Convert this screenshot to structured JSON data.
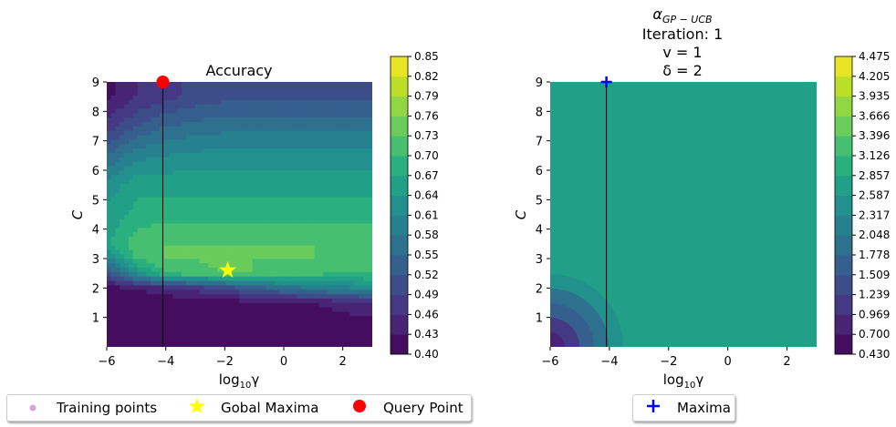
{
  "chart_data": [
    {
      "type": "heatmap",
      "title": "Accuracy",
      "xlabel": "log$_{10}$γ",
      "ylabel": "C",
      "xlim": [
        -6,
        3
      ],
      "ylim": [
        0,
        9
      ],
      "xticks": [
        "−6",
        "−4",
        "−2",
        "0",
        "2"
      ],
      "yticks": [
        "1",
        "2",
        "3",
        "4",
        "5",
        "6",
        "7",
        "8",
        "9"
      ],
      "colorbar": {
        "min": 0.4,
        "max": 0.85,
        "ticks": [
          "0.85",
          "0.82",
          "0.79",
          "0.76",
          "0.73",
          "0.70",
          "0.67",
          "0.64",
          "0.61",
          "0.58",
          "0.55",
          "0.52",
          "0.49",
          "0.46",
          "0.43",
          "0.40"
        ]
      },
      "description_values": {
        "rows_C": [
          0.5,
          1.5,
          2.0,
          2.5,
          3.0,
          3.5,
          4.5,
          5.5,
          6.5,
          7.5,
          8.5
        ],
        "values": [
          [
            0.41,
            0.41,
            0.41,
            0.41,
            0.41,
            0.41,
            0.41,
            0.41,
            0.41,
            0.41
          ],
          [
            0.41,
            0.41,
            0.41,
            0.41,
            0.41,
            0.42,
            0.42,
            0.43,
            0.44,
            0.45
          ],
          [
            0.42,
            0.43,
            0.45,
            0.47,
            0.5,
            0.53,
            0.56,
            0.58,
            0.6,
            0.62
          ],
          [
            0.5,
            0.62,
            0.7,
            0.72,
            0.73,
            0.73,
            0.72,
            0.71,
            0.7,
            0.7
          ],
          [
            0.6,
            0.7,
            0.73,
            0.73,
            0.74,
            0.73,
            0.73,
            0.73,
            0.73,
            0.73
          ],
          [
            0.66,
            0.72,
            0.73,
            0.73,
            0.73,
            0.73,
            0.73,
            0.73,
            0.72,
            0.72
          ],
          [
            0.65,
            0.68,
            0.69,
            0.69,
            0.69,
            0.69,
            0.69,
            0.69,
            0.69,
            0.69
          ],
          [
            0.62,
            0.66,
            0.66,
            0.66,
            0.66,
            0.66,
            0.66,
            0.66,
            0.66,
            0.66
          ],
          [
            0.55,
            0.6,
            0.61,
            0.62,
            0.62,
            0.62,
            0.62,
            0.62,
            0.62,
            0.62
          ],
          [
            0.47,
            0.52,
            0.55,
            0.56,
            0.57,
            0.57,
            0.57,
            0.57,
            0.57,
            0.57
          ],
          [
            0.42,
            0.46,
            0.48,
            0.5,
            0.51,
            0.51,
            0.51,
            0.51,
            0.51,
            0.51
          ]
        ],
        "cols_log_gamma": [
          -6,
          -5,
          -4,
          -3,
          -2,
          -1,
          0,
          1,
          2,
          3
        ]
      },
      "vertical_line_x": -4.1,
      "markers": [
        {
          "label": "Gobal Maxima",
          "x": -1.9,
          "y": 2.6,
          "shape": "star",
          "color": "#ffff00"
        },
        {
          "label": "Query Point",
          "x": -4.1,
          "y": 9.0,
          "shape": "circle",
          "color": "#ff0000"
        }
      ]
    },
    {
      "type": "heatmap",
      "title_lines": [
        "α_GP−UCB",
        "Iteration: 1",
        "ν = 1",
        "δ = 2"
      ],
      "title_main": "α",
      "title_sub": "GP − UCB",
      "title_iteration": "Iteration: 1",
      "title_nu": "v = 1",
      "title_delta": "δ = 2",
      "xlabel": "log$_{10}$γ",
      "ylabel": "C",
      "xlim": [
        -6,
        3
      ],
      "ylim": [
        0,
        9
      ],
      "xticks": [
        "−6",
        "−4",
        "−2",
        "0",
        "2"
      ],
      "yticks": [
        "1",
        "2",
        "3",
        "4",
        "5",
        "6",
        "7",
        "8",
        "9"
      ],
      "colorbar": {
        "min": 0.43,
        "max": 4.475,
        "ticks": [
          "4.475",
          "4.205",
          "3.935",
          "3.666",
          "3.396",
          "3.126",
          "2.857",
          "2.587",
          "2.317",
          "2.048",
          "1.778",
          "1.509",
          "1.239",
          "0.969",
          "0.700",
          "0.430"
        ]
      },
      "background_value": 2.7,
      "vertical_line_x": -4.1,
      "markers": [
        {
          "label": "Maxima",
          "x": -4.1,
          "y": 9.0,
          "shape": "plus",
          "color": "#0000ff"
        }
      ]
    }
  ],
  "legends": {
    "left": [
      {
        "label": "Training points",
        "shape": "dot",
        "color": "#dda0dd"
      },
      {
        "label": "Gobal Maxima",
        "shape": "star",
        "color": "#ffff00"
      },
      {
        "label": "Query Point",
        "shape": "circle",
        "color": "#ff0000"
      }
    ],
    "right": [
      {
        "label": "Maxima",
        "shape": "plus",
        "color": "#0000ff"
      }
    ]
  },
  "colormap": "viridis"
}
